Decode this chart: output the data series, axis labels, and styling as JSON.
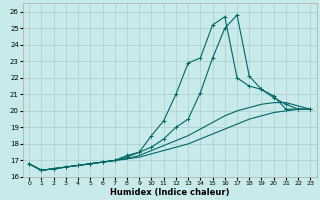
{
  "xlabel": "Humidex (Indice chaleur)",
  "background_color": "#c8eaea",
  "grid_color": "#b0d4d4",
  "line_color": "#006666",
  "xlim": [
    -0.5,
    23.5
  ],
  "ylim": [
    16,
    26.5
  ],
  "xticks": [
    0,
    1,
    2,
    3,
    4,
    5,
    6,
    7,
    8,
    9,
    10,
    11,
    12,
    13,
    14,
    15,
    16,
    17,
    18,
    19,
    20,
    21,
    22,
    23
  ],
  "yticks": [
    16,
    17,
    18,
    19,
    20,
    21,
    22,
    23,
    24,
    25,
    26
  ],
  "line1_x": [
    0,
    1,
    2,
    3,
    4,
    5,
    6,
    7,
    8,
    9,
    10,
    11,
    12,
    13,
    14,
    15,
    16,
    17,
    18,
    19,
    20,
    21,
    22,
    23
  ],
  "line1_y": [
    16.8,
    16.4,
    16.5,
    16.6,
    16.7,
    16.8,
    16.9,
    17.0,
    17.3,
    17.5,
    17.8,
    18.3,
    19.0,
    19.5,
    21.1,
    23.2,
    25.0,
    25.8,
    22.1,
    21.3,
    20.9,
    20.1,
    20.1,
    20.1
  ],
  "line2_x": [
    0,
    1,
    2,
    3,
    4,
    5,
    6,
    7,
    8,
    9,
    10,
    11,
    12,
    13,
    14,
    15,
    16,
    17,
    18,
    19,
    20,
    21,
    22,
    23
  ],
  "line2_y": [
    16.8,
    16.4,
    16.5,
    16.6,
    16.7,
    16.8,
    16.9,
    17.0,
    17.2,
    17.5,
    18.5,
    19.4,
    21.0,
    22.9,
    23.2,
    25.2,
    25.7,
    22.0,
    21.5,
    21.3,
    20.8,
    20.4,
    20.1,
    20.1
  ],
  "line3_x": [
    0,
    1,
    2,
    3,
    4,
    5,
    6,
    7,
    8,
    9,
    10,
    11,
    12,
    13,
    14,
    15,
    16,
    17,
    18,
    19,
    20,
    21,
    22,
    23
  ],
  "line3_y": [
    16.8,
    16.4,
    16.5,
    16.6,
    16.7,
    16.8,
    16.9,
    17.0,
    17.1,
    17.2,
    17.4,
    17.6,
    17.8,
    18.0,
    18.3,
    18.6,
    18.9,
    19.2,
    19.5,
    19.7,
    19.9,
    20.0,
    20.1,
    20.1
  ],
  "line4_x": [
    0,
    1,
    2,
    3,
    4,
    5,
    6,
    7,
    8,
    9,
    10,
    11,
    12,
    13,
    14,
    15,
    16,
    17,
    18,
    19,
    20,
    21,
    22,
    23
  ],
  "line4_y": [
    16.8,
    16.4,
    16.5,
    16.6,
    16.7,
    16.8,
    16.9,
    17.0,
    17.1,
    17.3,
    17.6,
    17.9,
    18.2,
    18.5,
    18.9,
    19.3,
    19.7,
    20.0,
    20.2,
    20.4,
    20.5,
    20.5,
    20.3,
    20.1
  ]
}
